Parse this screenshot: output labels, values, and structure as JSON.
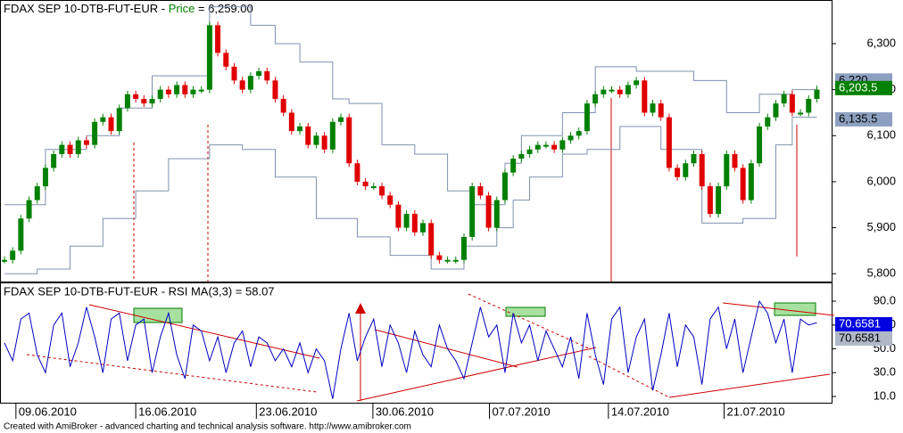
{
  "chart_data": [
    {
      "type": "price",
      "title": "FDAX SEP 10-DTB-FUT-EUR - ",
      "title_indicator": "Price",
      "title_value": " = 6,259.00",
      "up_color": "#008000",
      "down_color": "#e00000",
      "band_color": "#8090b0",
      "xlim": [
        -0.54,
        100.8
      ],
      "ylim": [
        5783,
        6391
      ],
      "yticks": [
        {
          "value": 5800,
          "label": "5,800"
        },
        {
          "value": 5900,
          "label": "5,900"
        },
        {
          "value": 6000,
          "label": "6,000"
        },
        {
          "value": 6100,
          "label": "6,100"
        },
        {
          "value": 6200,
          "label": "6,200"
        },
        {
          "value": 6300,
          "label": "6,300"
        }
      ],
      "values": [
        5830,
        5850,
        5920,
        5960,
        5990,
        6030,
        6060,
        6080,
        6060,
        6090,
        6080,
        6130,
        6140,
        6110,
        6160,
        6190,
        6180,
        6170,
        6180,
        6200,
        6190,
        6210,
        6190,
        6200,
        6200,
        6340,
        6280,
        6250,
        6220,
        6200,
        6230,
        6240,
        6220,
        6180,
        6150,
        6110,
        6120,
        6080,
        6100,
        6070,
        6130,
        6140,
        6040,
        6000,
        5990,
        5990,
        5970,
        5950,
        5900,
        5930,
        5890,
        5910,
        5840,
        5830,
        5830,
        5830,
        5880,
        5990,
        5970,
        5900,
        5960,
        6020,
        6050,
        6060,
        6070,
        6080,
        6080,
        6070,
        6090,
        6100,
        6110,
        6170,
        6190,
        6200,
        6200,
        6190,
        6210,
        6220,
        6150,
        6170,
        6140,
        6030,
        6010,
        6040,
        6060,
        5990,
        5930,
        5990,
        6060,
        6030,
        5960,
        6040,
        6120,
        6140,
        6170,
        6190,
        6150,
        6150,
        6180,
        6200
      ],
      "upper_band": {
        "x": [
          0,
          5,
          10,
          14,
          18,
          25,
          30,
          33,
          36,
          40,
          42,
          46,
          50,
          54,
          57,
          61,
          63,
          68,
          72,
          77,
          84,
          88,
          92,
          96,
          99
        ],
        "values": [
          5950,
          6070,
          6100,
          6160,
          6230,
          6380,
          6340,
          6300,
          6260,
          6180,
          6170,
          6080,
          6060,
          5980,
          5950,
          6040,
          6100,
          6150,
          6250,
          6240,
          6220,
          6150,
          6190,
          6200,
          6210
        ]
      },
      "lower_band": {
        "x": [
          0,
          4,
          8,
          12,
          16,
          20,
          25,
          29,
          33,
          38,
          43,
          47,
          52,
          56,
          60,
          62,
          64,
          68,
          71,
          75,
          80,
          85,
          90,
          94,
          96,
          99
        ],
        "values": [
          5800,
          5810,
          5860,
          5920,
          5980,
          6050,
          6080,
          6070,
          6010,
          5920,
          5880,
          5840,
          5810,
          5860,
          5900,
          5960,
          6010,
          6060,
          6070,
          6120,
          6070,
          5910,
          5920,
          6080,
          6140,
          6140
        ]
      },
      "markers": [
        {
          "value": 6220,
          "label": "6,220",
          "color": "#8ea0c0"
        },
        {
          "value": 6203.5,
          "label": "6,203.5",
          "color": "#008000"
        },
        {
          "value": 6135.5,
          "label": "6,135.5",
          "color": "#8ea0c0"
        }
      ]
    },
    {
      "type": "rsi",
      "title": "FDAX SEP 10-DTB-FUT-EUR - RSI MA(3,3) = 58.07",
      "color": "#0000c0",
      "xlim": [
        -0.54,
        100.8
      ],
      "ylim": [
        4.8,
        105
      ],
      "yticks": [
        {
          "value": 10,
          "label": "10.0"
        },
        {
          "value": 30,
          "label": "30.0"
        },
        {
          "value": 50,
          "label": "50.0"
        },
        {
          "value": 70,
          "label": "70.0"
        },
        {
          "value": 90,
          "label": "90.0"
        }
      ],
      "values": [
        55,
        40,
        75,
        80,
        45,
        30,
        70,
        80,
        35,
        55,
        85,
        60,
        30,
        75,
        80,
        40,
        70,
        75,
        30,
        60,
        80,
        45,
        25,
        70,
        65,
        40,
        60,
        30,
        55,
        65,
        35,
        60,
        55,
        40,
        50,
        35,
        55,
        30,
        50,
        40,
        8,
        50,
        80,
        40,
        60,
        75,
        35,
        70,
        55,
        30,
        65,
        45,
        35,
        70,
        50,
        40,
        25,
        55,
        85,
        60,
        70,
        30,
        80,
        55,
        70,
        40,
        65,
        50,
        35,
        60,
        25,
        80,
        45,
        20,
        75,
        85,
        30,
        60,
        75,
        15,
        45,
        80,
        35,
        70,
        60,
        20,
        75,
        85,
        50,
        75,
        30,
        60,
        90,
        80,
        55,
        75,
        30,
        75,
        70,
        72
      ],
      "markers": [
        {
          "value": 70.6581,
          "label": "70.6581",
          "color": "#0000e0"
        },
        {
          "value": 70.6581,
          "label": "70.6581",
          "color": "#b0b8c8"
        }
      ],
      "xticks": [
        {
          "value": 1.4,
          "label": "09.06.2010"
        },
        {
          "value": 16,
          "label": "16.06.2010"
        },
        {
          "value": 30.7,
          "label": "23.06.2010"
        },
        {
          "value": 44.9,
          "label": "30.06.2010"
        },
        {
          "value": 59.1,
          "label": "07.07.2010"
        },
        {
          "value": 73.6,
          "label": "14.07.2010"
        },
        {
          "value": 87.7,
          "label": "21.07.2010"
        }
      ]
    }
  ],
  "footer": "Created with AmiBroker - advanced charting and technical analysis software. http://www.amibroker.com"
}
